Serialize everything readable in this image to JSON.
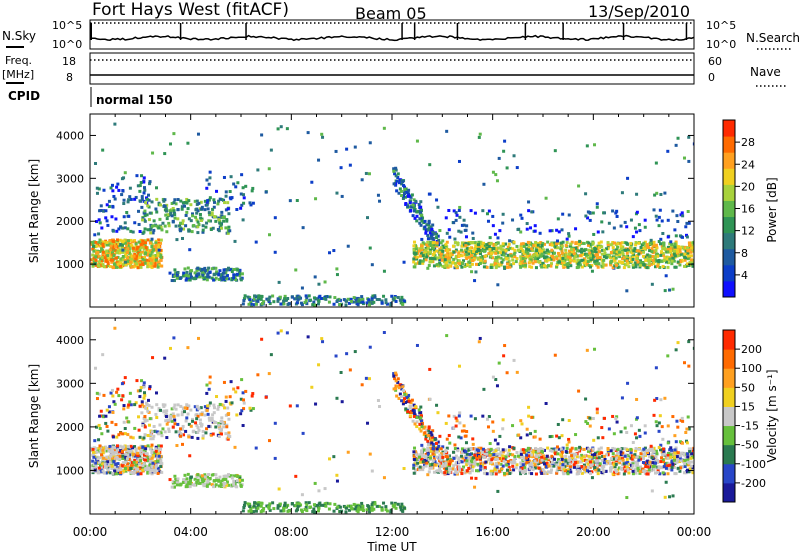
{
  "header": {
    "title": "Fort Hays West (fitACF)",
    "beam": "Beam 05",
    "date": "13/Sep/2010"
  },
  "top_panels": {
    "nsky_label": "N.Sky",
    "nsky_ticks": [
      "10^5",
      "10^0"
    ],
    "nsearch_label": "N.Search",
    "nsearch_ticks": [
      "10^5",
      "10^0"
    ],
    "freq_label": "Freq.",
    "freq_unit": "[MHz]",
    "freq_ticks": [
      "18",
      "8"
    ],
    "nave_label": "Nave",
    "nave_ticks": [
      "60",
      "0"
    ],
    "cpid_label": "CPID",
    "cpid_value": "normal 150"
  },
  "chart_data": [
    {
      "type": "heatmap",
      "name": "power",
      "ylabel": "Slant Range [km]",
      "yticks": [
        "1000",
        "2000",
        "3000",
        "4000"
      ],
      "ylim": [
        0,
        4500
      ],
      "xlim_hours": [
        0,
        24
      ],
      "colorbar": {
        "label": "Power [dB]",
        "ticks": [
          "4",
          "8",
          "12",
          "16",
          "20",
          "24",
          "28"
        ],
        "colors": [
          "#1010ff",
          "#0c3ec8",
          "#1e5aa0",
          "#2e7a7a",
          "#2f9455",
          "#5fb84a",
          "#a8d23c",
          "#f0d020",
          "#ffa020",
          "#ff6a00",
          "#ff2a00"
        ]
      },
      "regions": [
        {
          "t": [
            0.0,
            2.8
          ],
          "r": [
            950,
            1600
          ],
          "note": "dense echoes ~1200 km"
        },
        {
          "t": [
            0.3,
            2.2
          ],
          "r": [
            1800,
            3000
          ],
          "note": "sparse"
        },
        {
          "t": [
            2.0,
            5.5
          ],
          "r": [
            1800,
            2500
          ],
          "note": "patch ~2000 km"
        },
        {
          "t": [
            3.2,
            6.0
          ],
          "r": [
            650,
            950
          ],
          "note": "patch ~800 km"
        },
        {
          "t": [
            6.0,
            12.5
          ],
          "r": [
            80,
            300
          ],
          "note": "ground scatter near 200 km"
        },
        {
          "t": [
            12.8,
            24.0
          ],
          "r": [
            950,
            1500
          ],
          "note": "dense band ~1200 km"
        }
      ]
    },
    {
      "type": "heatmap",
      "name": "velocity",
      "ylabel": "Slant Range [km]",
      "yticks": [
        "1000",
        "2000",
        "3000",
        "4000"
      ],
      "ylim": [
        0,
        4500
      ],
      "xlabel": "Time UT",
      "xticks": [
        "00:00",
        "04:00",
        "08:00",
        "12:00",
        "16:00",
        "20:00",
        "00:00"
      ],
      "colorbar": {
        "label": "Velocity [m s⁻¹]",
        "ticks": [
          "200",
          "100",
          "50",
          "15",
          "-15",
          "-50",
          "-100",
          "-200"
        ],
        "colors": [
          "#1a1a9a",
          "#2846c8",
          "#2a7a50",
          "#66c03c",
          "#c8c8c8",
          "#f0d020",
          "#ffa020",
          "#ff6a00",
          "#ff2a00"
        ]
      }
    }
  ]
}
